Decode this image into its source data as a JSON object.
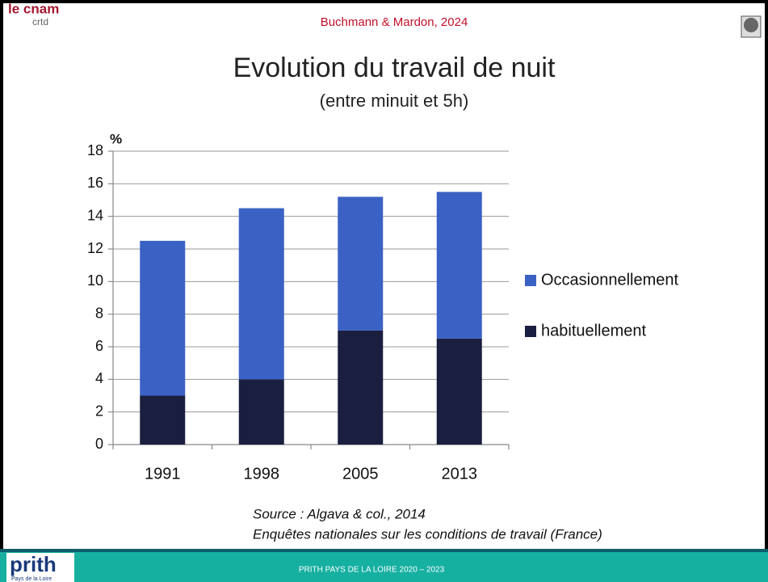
{
  "header": {
    "logo": "le cnam",
    "logo_sub": "crtd",
    "citation": "Buchmann & Mardon, 2024"
  },
  "chart_data": {
    "type": "bar",
    "stacked": true,
    "title": "Evolution du travail de nuit",
    "subtitle": "(entre minuit et 5h)",
    "y_label": "%",
    "categories": [
      "1991",
      "1998",
      "2005",
      "2013"
    ],
    "series": [
      {
        "name": "Occasionnellement",
        "color": "#3a61c4",
        "values": [
          9.5,
          10.5,
          8.2,
          9
        ]
      },
      {
        "name": "habituellement",
        "color": "#1b1f3f",
        "values": [
          3,
          4,
          7,
          6.5
        ]
      }
    ],
    "ylim": [
      0,
      18
    ],
    "yticks": [
      0,
      2,
      4,
      6,
      8,
      10,
      12,
      14,
      16,
      18
    ],
    "grid": true,
    "legend": "right"
  },
  "source": [
    "Source : Algava & col., 2014",
    "Enquêtes nationales sur les conditions de travail (France)"
  ],
  "footer": {
    "logo": "prith",
    "logo_sub": "Pays de la Loire",
    "text": "PRITH PAYS DE LA LOIRE 2020 – 2023"
  }
}
